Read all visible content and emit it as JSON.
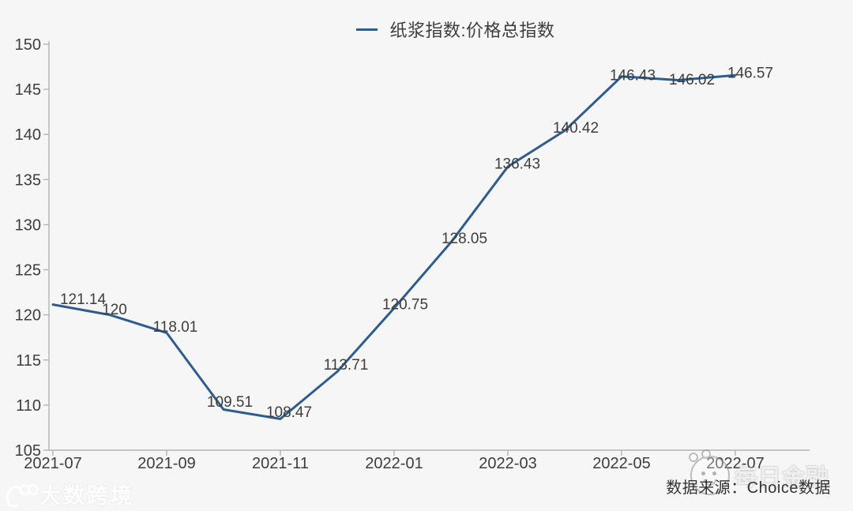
{
  "legend": {
    "label": "纸浆指数:价格总指数"
  },
  "source_note": "数据来源：Choice数据",
  "watermark_left": "大数跨境",
  "watermark_right": "每日金融",
  "colors": {
    "line": "#2e5c8f",
    "text": "#3d3d3d",
    "axis": "#b3b3b3",
    "background": "#f6f6f6"
  },
  "chart_data": {
    "type": "line",
    "title": "",
    "series_name": "纸浆指数:价格总指数",
    "x": [
      "2021-07",
      "2021-08",
      "2021-09",
      "2021-10",
      "2021-11",
      "2021-12",
      "2022-01",
      "2022-02",
      "2022-03",
      "2022-04",
      "2022-05",
      "2022-06",
      "2022-07"
    ],
    "values": [
      121.14,
      120,
      118.01,
      109.51,
      108.47,
      113.71,
      120.75,
      128.05,
      136.43,
      140.42,
      146.43,
      146.02,
      146.57
    ],
    "point_labels": [
      "121.14",
      "120",
      "118.01",
      "109.51",
      "108.47",
      "113.71",
      "120.75",
      "128.05",
      "136.43",
      "140.42",
      "146.43",
      "146.02",
      "146.57"
    ],
    "x_tick_labels": [
      "2021-07",
      "2021-09",
      "2021-11",
      "2022-01",
      "2022-03",
      "2022-05",
      "2022-07"
    ],
    "x_tick_every": 2,
    "y_ticks": [
      105,
      110,
      115,
      120,
      125,
      130,
      135,
      140,
      145,
      150
    ],
    "ylim": [
      105,
      150
    ],
    "xlabel": "",
    "ylabel": "",
    "grid": false,
    "legend_position": "top",
    "line_color": "#2e5c8f"
  }
}
